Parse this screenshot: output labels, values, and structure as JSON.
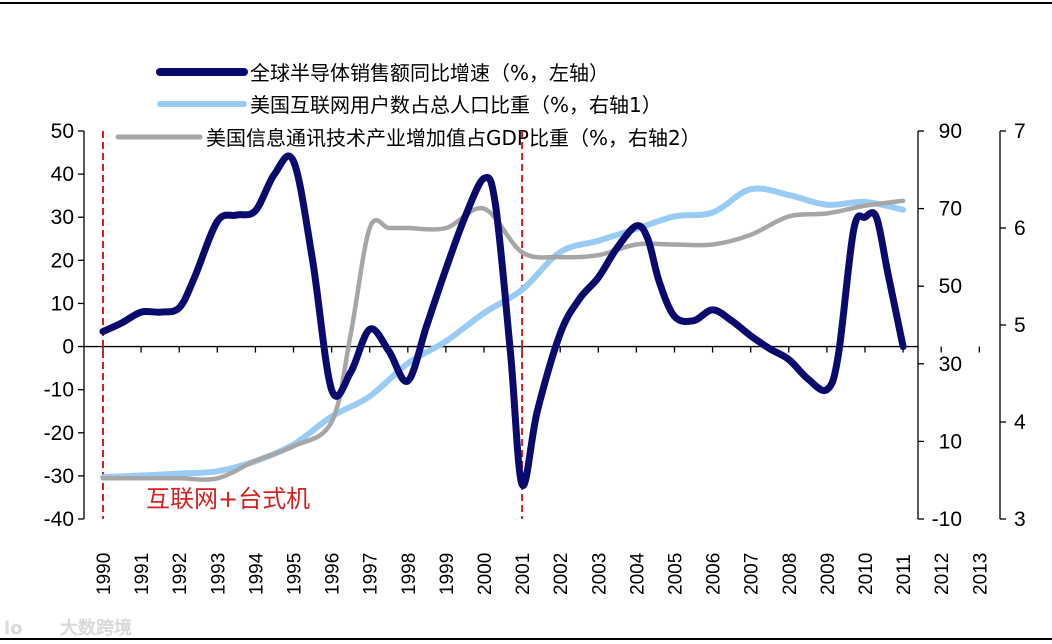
{
  "chart_data": {
    "type": "line",
    "categories": [
      "1990",
      "1991",
      "1992",
      "1993",
      "1994",
      "1995",
      "1996",
      "1997",
      "1998",
      "1999",
      "2000",
      "2001",
      "2002",
      "2003",
      "2004",
      "2005",
      "2006",
      "2007",
      "2008",
      "2009",
      "2010",
      "2011",
      "2012",
      "2013"
    ],
    "left_axis": {
      "range": [
        -40,
        50
      ],
      "ticks": [
        "50",
        "40",
        "30",
        "20",
        "10",
        "0",
        "-10",
        "-20",
        "-30",
        "-40"
      ]
    },
    "right_axis_1": {
      "range": [
        -10,
        90
      ],
      "ticks": [
        "90",
        "70",
        "50",
        "30",
        "10",
        "-10"
      ]
    },
    "right_axis_2": {
      "range": [
        3,
        7
      ],
      "ticks": [
        "7",
        "6",
        "5",
        "4",
        "3"
      ]
    },
    "series": [
      {
        "name": "全球半导体销售额同比增速（%，左轴）",
        "axis": "left",
        "color": "#0a0a6e",
        "x": [
          1990.0,
          1990.5,
          1991.0,
          1991.5,
          1992.0,
          1992.4,
          1993.0,
          1993.5,
          1994.0,
          1994.5,
          1995.0,
          1995.5,
          1996.0,
          1996.5,
          1997.0,
          1997.5,
          1998.0,
          1998.5,
          1999.0,
          1999.5,
          2000.0,
          2000.3,
          2000.7,
          2001.0,
          2001.4,
          2002.0,
          2002.5,
          2003.0,
          2003.5,
          2004.0,
          2004.3,
          2004.6,
          2005.0,
          2005.5,
          2006.0,
          2006.5,
          2007.0,
          2007.5,
          2008.0,
          2008.5,
          2009.0,
          2009.3,
          2009.7,
          2010.0,
          2010.3,
          2010.6,
          2011.0
        ],
        "values": [
          3.5,
          5.5,
          8,
          8,
          9,
          16,
          29,
          30.5,
          31.5,
          40,
          43,
          20,
          -10,
          -6,
          4,
          -1,
          -8,
          5,
          18,
          30,
          39,
          33,
          -2,
          -32,
          -15,
          3,
          11,
          16,
          23,
          28,
          25,
          15,
          7,
          6,
          8.5,
          6,
          2.5,
          -0.5,
          -3,
          -7.5,
          -10,
          -2,
          27,
          30,
          30,
          17,
          0
        ]
      },
      {
        "name": "美国互联网用户数占总人口比重（%，右轴1）",
        "axis": "right1",
        "color": "#99ccf5",
        "x": [
          1990,
          1991,
          1992,
          1993,
          1994,
          1995,
          1996,
          1997,
          1998,
          1999,
          2000,
          2001,
          2002,
          2003,
          2004,
          2005,
          2006,
          2007,
          2008,
          2009,
          2010,
          2011
        ],
        "values": [
          0.8,
          1.2,
          1.7,
          2.3,
          4.9,
          9.2,
          16.4,
          21.6,
          30.1,
          35.8,
          43.1,
          49.1,
          58.8,
          61.7,
          64.8,
          68,
          69,
          75,
          73.5,
          71,
          71.7,
          69.7
        ]
      },
      {
        "name": "美国信息通讯技术产业增加值占GDP比重（%，右轴2）",
        "axis": "right2",
        "color": "#a6a6a6",
        "x": [
          1990,
          1991,
          1992,
          1993,
          1994,
          1995,
          1996,
          1996.5,
          1997,
          1997.5,
          1998,
          1999,
          2000,
          2001,
          2002,
          2003,
          2004,
          2005,
          2006,
          2007,
          2008,
          2009,
          2010,
          2011
        ],
        "values": [
          3.42,
          3.42,
          3.42,
          3.42,
          3.6,
          3.75,
          4.0,
          4.9,
          6.0,
          6.0,
          6.0,
          6.0,
          6.2,
          5.75,
          5.7,
          5.72,
          5.83,
          5.83,
          5.83,
          5.93,
          6.12,
          6.15,
          6.23,
          6.28
        ]
      }
    ],
    "annotations": {
      "label": "互联网+台式机",
      "marker_years": [
        "1990",
        "2001"
      ],
      "color": "#d81f1f"
    }
  },
  "watermark": {
    "text": "大数跨境",
    "logo_text": "lo"
  }
}
